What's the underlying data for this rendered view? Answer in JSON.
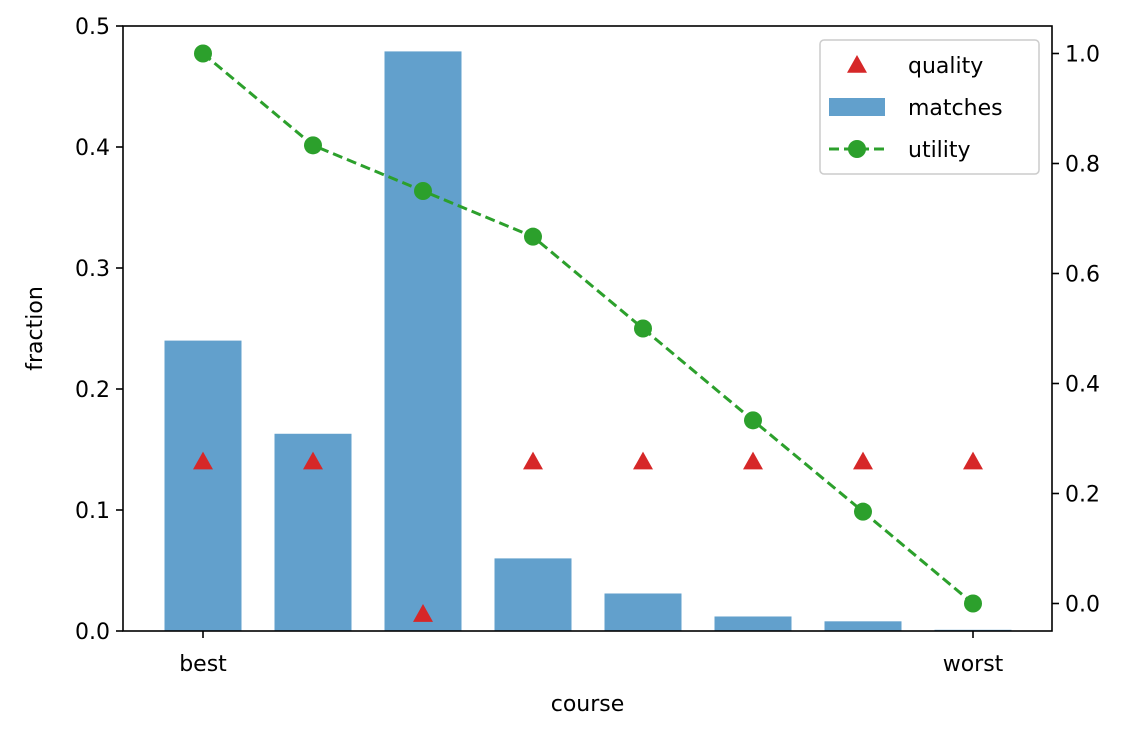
{
  "chart_data": {
    "type": "bar",
    "categories": [
      "1",
      "2",
      "3",
      "4",
      "5",
      "6",
      "7",
      "8"
    ],
    "x_tick_labels": [
      {
        "index": 0,
        "label": "best"
      },
      {
        "index": 7,
        "label": "worst"
      }
    ],
    "xlabel": "course",
    "ylabel": "fraction",
    "ylim": [
      0,
      0.5
    ],
    "y_ticks": [
      0.0,
      0.1,
      0.2,
      0.3,
      0.4,
      0.5
    ],
    "y2lim": [
      -0.05,
      1.05
    ],
    "y2_ticks": [
      0.0,
      0.2,
      0.4,
      0.6,
      0.8,
      1.0
    ],
    "legend_position": "top-right",
    "grid": false,
    "series": [
      {
        "name": "quality",
        "kind": "scatter",
        "marker": "triangle",
        "axis": "left",
        "color": "#d62728",
        "values": [
          0.14,
          0.14,
          0.014,
          0.14,
          0.14,
          0.14,
          0.14,
          0.14
        ]
      },
      {
        "name": "matches",
        "kind": "bar",
        "axis": "left",
        "color": "#62a0cc",
        "values": [
          0.24,
          0.163,
          0.479,
          0.06,
          0.031,
          0.012,
          0.008,
          0.001
        ]
      },
      {
        "name": "utility",
        "kind": "line",
        "line_style": "dashed",
        "marker": "circle",
        "axis": "right",
        "color": "#2ca02c",
        "values": [
          1.0,
          0.833,
          0.75,
          0.667,
          0.5,
          0.333,
          0.167,
          0.0
        ]
      }
    ]
  }
}
